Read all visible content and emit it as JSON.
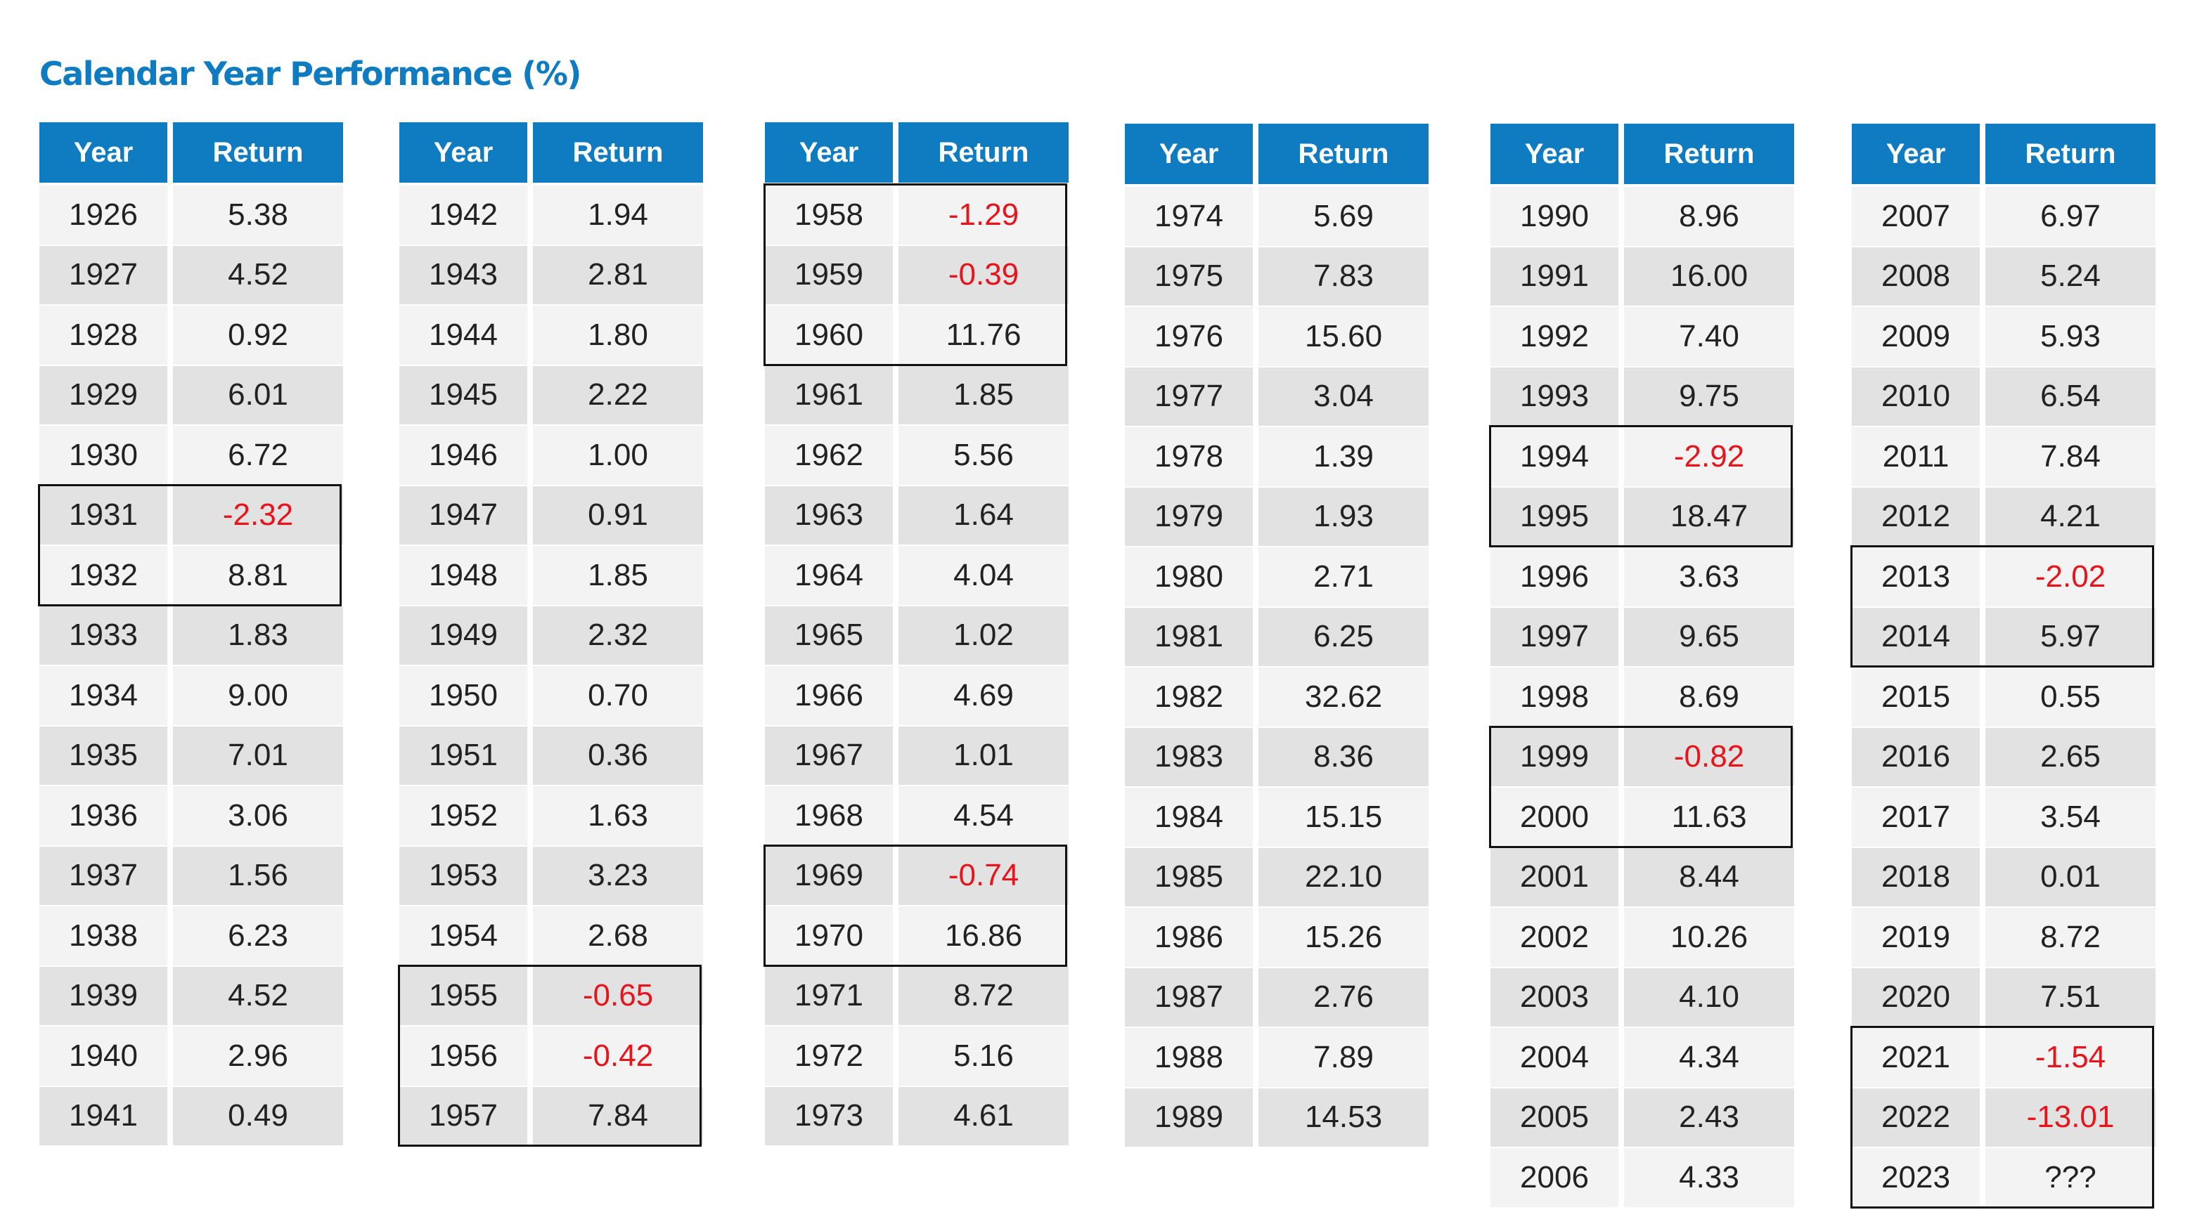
{
  "title": "Calendar Year Performance (%)",
  "header": {
    "year": "Year",
    "return": "Return"
  },
  "colors": {
    "header_bg": "#0f7bc1",
    "title": "#0f7bc1",
    "negative": "#e8141b",
    "row_light": "#f3f3f3",
    "row_dark": "#e2e2e2"
  },
  "columns": [
    {
      "rows": [
        {
          "year": "1926",
          "ret": "5.38"
        },
        {
          "year": "1927",
          "ret": "4.52"
        },
        {
          "year": "1928",
          "ret": "0.92"
        },
        {
          "year": "1929",
          "ret": "6.01"
        },
        {
          "year": "1930",
          "ret": "6.72"
        },
        {
          "year": "1931",
          "ret": "-2.32"
        },
        {
          "year": "1932",
          "ret": "8.81"
        },
        {
          "year": "1933",
          "ret": "1.83"
        },
        {
          "year": "1934",
          "ret": "9.00"
        },
        {
          "year": "1935",
          "ret": "7.01"
        },
        {
          "year": "1936",
          "ret": "3.06"
        },
        {
          "year": "1937",
          "ret": "1.56"
        },
        {
          "year": "1938",
          "ret": "6.23"
        },
        {
          "year": "1939",
          "ret": "4.52"
        },
        {
          "year": "1940",
          "ret": "2.96"
        },
        {
          "year": "1941",
          "ret": "0.49"
        }
      ],
      "boxes": [
        [
          5,
          6
        ]
      ]
    },
    {
      "rows": [
        {
          "year": "1942",
          "ret": "1.94"
        },
        {
          "year": "1943",
          "ret": "2.81"
        },
        {
          "year": "1944",
          "ret": "1.80"
        },
        {
          "year": "1945",
          "ret": "2.22"
        },
        {
          "year": "1946",
          "ret": "1.00"
        },
        {
          "year": "1947",
          "ret": "0.91"
        },
        {
          "year": "1948",
          "ret": "1.85"
        },
        {
          "year": "1949",
          "ret": "2.32"
        },
        {
          "year": "1950",
          "ret": "0.70"
        },
        {
          "year": "1951",
          "ret": "0.36"
        },
        {
          "year": "1952",
          "ret": "1.63"
        },
        {
          "year": "1953",
          "ret": "3.23"
        },
        {
          "year": "1954",
          "ret": "2.68"
        },
        {
          "year": "1955",
          "ret": "-0.65"
        },
        {
          "year": "1956",
          "ret": "-0.42"
        },
        {
          "year": "1957",
          "ret": "7.84"
        }
      ],
      "boxes": [
        [
          13,
          15
        ]
      ]
    },
    {
      "rows": [
        {
          "year": "1958",
          "ret": "-1.29"
        },
        {
          "year": "1959",
          "ret": "-0.39"
        },
        {
          "year": "1960",
          "ret": "11.76"
        },
        {
          "year": "1961",
          "ret": "1.85"
        },
        {
          "year": "1962",
          "ret": "5.56"
        },
        {
          "year": "1963",
          "ret": "1.64"
        },
        {
          "year": "1964",
          "ret": "4.04"
        },
        {
          "year": "1965",
          "ret": "1.02"
        },
        {
          "year": "1966",
          "ret": "4.69"
        },
        {
          "year": "1967",
          "ret": "1.01"
        },
        {
          "year": "1968",
          "ret": "4.54"
        },
        {
          "year": "1969",
          "ret": "-0.74"
        },
        {
          "year": "1970",
          "ret": "16.86"
        },
        {
          "year": "1971",
          "ret": "8.72"
        },
        {
          "year": "1972",
          "ret": "5.16"
        },
        {
          "year": "1973",
          "ret": "4.61"
        }
      ],
      "boxes": [
        [
          0,
          2
        ],
        [
          11,
          12
        ]
      ]
    },
    {
      "rows": [
        {
          "year": "1974",
          "ret": "5.69"
        },
        {
          "year": "1975",
          "ret": "7.83"
        },
        {
          "year": "1976",
          "ret": "15.60"
        },
        {
          "year": "1977",
          "ret": "3.04"
        },
        {
          "year": "1978",
          "ret": "1.39"
        },
        {
          "year": "1979",
          "ret": "1.93"
        },
        {
          "year": "1980",
          "ret": "2.71"
        },
        {
          "year": "1981",
          "ret": "6.25"
        },
        {
          "year": "1982",
          "ret": "32.62"
        },
        {
          "year": "1983",
          "ret": "8.36"
        },
        {
          "year": "1984",
          "ret": "15.15"
        },
        {
          "year": "1985",
          "ret": "22.10"
        },
        {
          "year": "1986",
          "ret": "15.26"
        },
        {
          "year": "1987",
          "ret": "2.76"
        },
        {
          "year": "1988",
          "ret": "7.89"
        },
        {
          "year": "1989",
          "ret": "14.53"
        }
      ],
      "boxes": []
    },
    {
      "rows": [
        {
          "year": "1990",
          "ret": "8.96"
        },
        {
          "year": "1991",
          "ret": "16.00"
        },
        {
          "year": "1992",
          "ret": "7.40"
        },
        {
          "year": "1993",
          "ret": "9.75"
        },
        {
          "year": "1994",
          "ret": "-2.92"
        },
        {
          "year": "1995",
          "ret": "18.47"
        },
        {
          "year": "1996",
          "ret": "3.63"
        },
        {
          "year": "1997",
          "ret": "9.65"
        },
        {
          "year": "1998",
          "ret": "8.69"
        },
        {
          "year": "1999",
          "ret": "-0.82"
        },
        {
          "year": "2000",
          "ret": "11.63"
        },
        {
          "year": "2001",
          "ret": "8.44"
        },
        {
          "year": "2002",
          "ret": "10.26"
        },
        {
          "year": "2003",
          "ret": "4.10"
        },
        {
          "year": "2004",
          "ret": "4.34"
        },
        {
          "year": "2005",
          "ret": "2.43"
        },
        {
          "year": "2006",
          "ret": "4.33"
        }
      ],
      "boxes": [
        [
          4,
          5
        ],
        [
          9,
          10
        ]
      ]
    },
    {
      "rows": [
        {
          "year": "2007",
          "ret": "6.97"
        },
        {
          "year": "2008",
          "ret": "5.24"
        },
        {
          "year": "2009",
          "ret": "5.93"
        },
        {
          "year": "2010",
          "ret": "6.54"
        },
        {
          "year": "2011",
          "ret": "7.84"
        },
        {
          "year": "2012",
          "ret": "4.21"
        },
        {
          "year": "2013",
          "ret": "-2.02"
        },
        {
          "year": "2014",
          "ret": "5.97"
        },
        {
          "year": "2015",
          "ret": "0.55"
        },
        {
          "year": "2016",
          "ret": "2.65"
        },
        {
          "year": "2017",
          "ret": "3.54"
        },
        {
          "year": "2018",
          "ret": "0.01"
        },
        {
          "year": "2019",
          "ret": "8.72"
        },
        {
          "year": "2020",
          "ret": "7.51"
        },
        {
          "year": "2021",
          "ret": "-1.54"
        },
        {
          "year": "2022",
          "ret": "-13.01"
        },
        {
          "year": "2023",
          "ret": "???"
        }
      ],
      "boxes": [
        [
          6,
          7
        ],
        [
          14,
          16
        ]
      ]
    }
  ]
}
